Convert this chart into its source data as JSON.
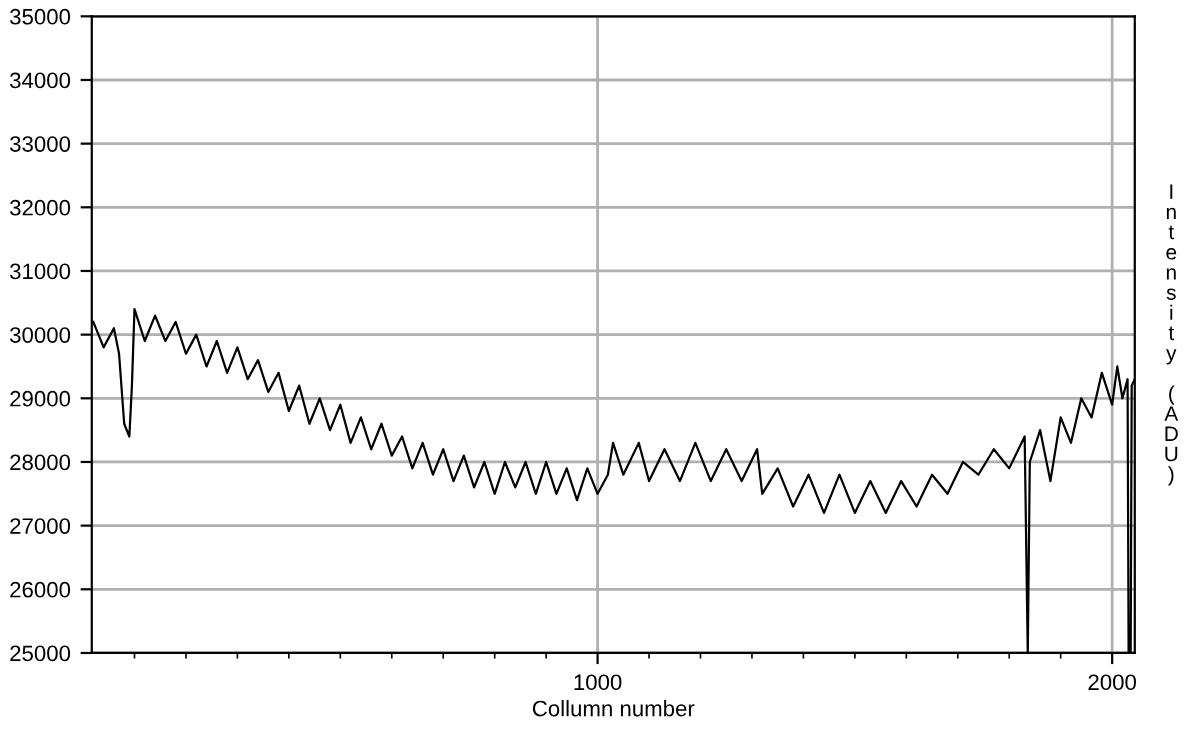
{
  "chart_data": {
    "type": "line",
    "xlabel": "Collumn number",
    "ylabel": "Intensity (ADU)",
    "xlim": [
      17,
      2044
    ],
    "xticks": [
      {
        "value": 100,
        "label": null
      },
      {
        "value": 200,
        "label": null
      },
      {
        "value": 300,
        "label": null
      },
      {
        "value": 400,
        "label": null
      },
      {
        "value": 500,
        "label": null
      },
      {
        "value": 600,
        "label": null
      },
      {
        "value": 700,
        "label": null
      },
      {
        "value": 800,
        "label": null
      },
      {
        "value": 900,
        "label": null
      },
      1000,
      {
        "value": 1100,
        "label": null
      },
      {
        "value": 1200,
        "label": null
      },
      {
        "value": 1300,
        "label": null
      },
      {
        "value": 1400,
        "label": null
      },
      {
        "value": 1500,
        "label": null
      },
      {
        "value": 1600,
        "label": null
      },
      {
        "value": 1700,
        "label": null
      },
      {
        "value": 1800,
        "label": null
      },
      {
        "value": 1900,
        "label": null
      },
      2000
    ],
    "ylim": [
      25000,
      35000
    ],
    "yticks": [
      25000,
      26000,
      27000,
      28000,
      29000,
      30000,
      31000,
      32000,
      33000,
      34000,
      35000
    ],
    "grid": true,
    "marker": "none",
    "line_style": "solid",
    "series": [
      {
        "color": "#000000",
        "x": [
          20,
          40,
          60,
          70,
          80,
          90,
          95,
          100,
          120,
          140,
          160,
          180,
          200,
          220,
          240,
          260,
          280,
          300,
          320,
          340,
          360,
          380,
          400,
          420,
          440,
          460,
          480,
          500,
          520,
          540,
          560,
          580,
          600,
          620,
          640,
          660,
          680,
          700,
          720,
          740,
          760,
          780,
          800,
          820,
          840,
          860,
          880,
          900,
          920,
          940,
          960,
          980,
          1000,
          1020,
          1030,
          1050,
          1080,
          1100,
          1130,
          1160,
          1190,
          1220,
          1250,
          1280,
          1310,
          1320,
          1350,
          1380,
          1410,
          1440,
          1470,
          1500,
          1530,
          1560,
          1590,
          1620,
          1650,
          1680,
          1710,
          1740,
          1770,
          1800,
          1830,
          1836,
          1840,
          1860,
          1880,
          1900,
          1920,
          1940,
          1960,
          1980,
          2000,
          2010,
          2020,
          2030,
          2032,
          2036,
          2038,
          2044
        ],
        "values": [
          30200,
          29800,
          30100,
          29700,
          28600,
          28400,
          29200,
          30400,
          29900,
          30300,
          29900,
          30200,
          29700,
          30000,
          29500,
          29900,
          29400,
          29800,
          29300,
          29600,
          29100,
          29400,
          28800,
          29200,
          28600,
          29000,
          28500,
          28900,
          28300,
          28700,
          28200,
          28600,
          28100,
          28400,
          27900,
          28300,
          27800,
          28200,
          27700,
          28100,
          27600,
          28000,
          27500,
          28000,
          27600,
          28000,
          27500,
          28000,
          27500,
          27900,
          27400,
          27900,
          27500,
          27800,
          28300,
          27800,
          28300,
          27700,
          28200,
          27700,
          28300,
          27700,
          28200,
          27700,
          28200,
          27500,
          27900,
          27300,
          27800,
          27200,
          27800,
          27200,
          27700,
          27200,
          27700,
          27300,
          27800,
          27500,
          28000,
          27800,
          28200,
          27900,
          28400,
          25000,
          28000,
          28500,
          27700,
          28700,
          28300,
          29000,
          28700,
          29400,
          28900,
          29500,
          29000,
          29300,
          25000,
          25000,
          29200,
          29300
        ]
      }
    ]
  }
}
